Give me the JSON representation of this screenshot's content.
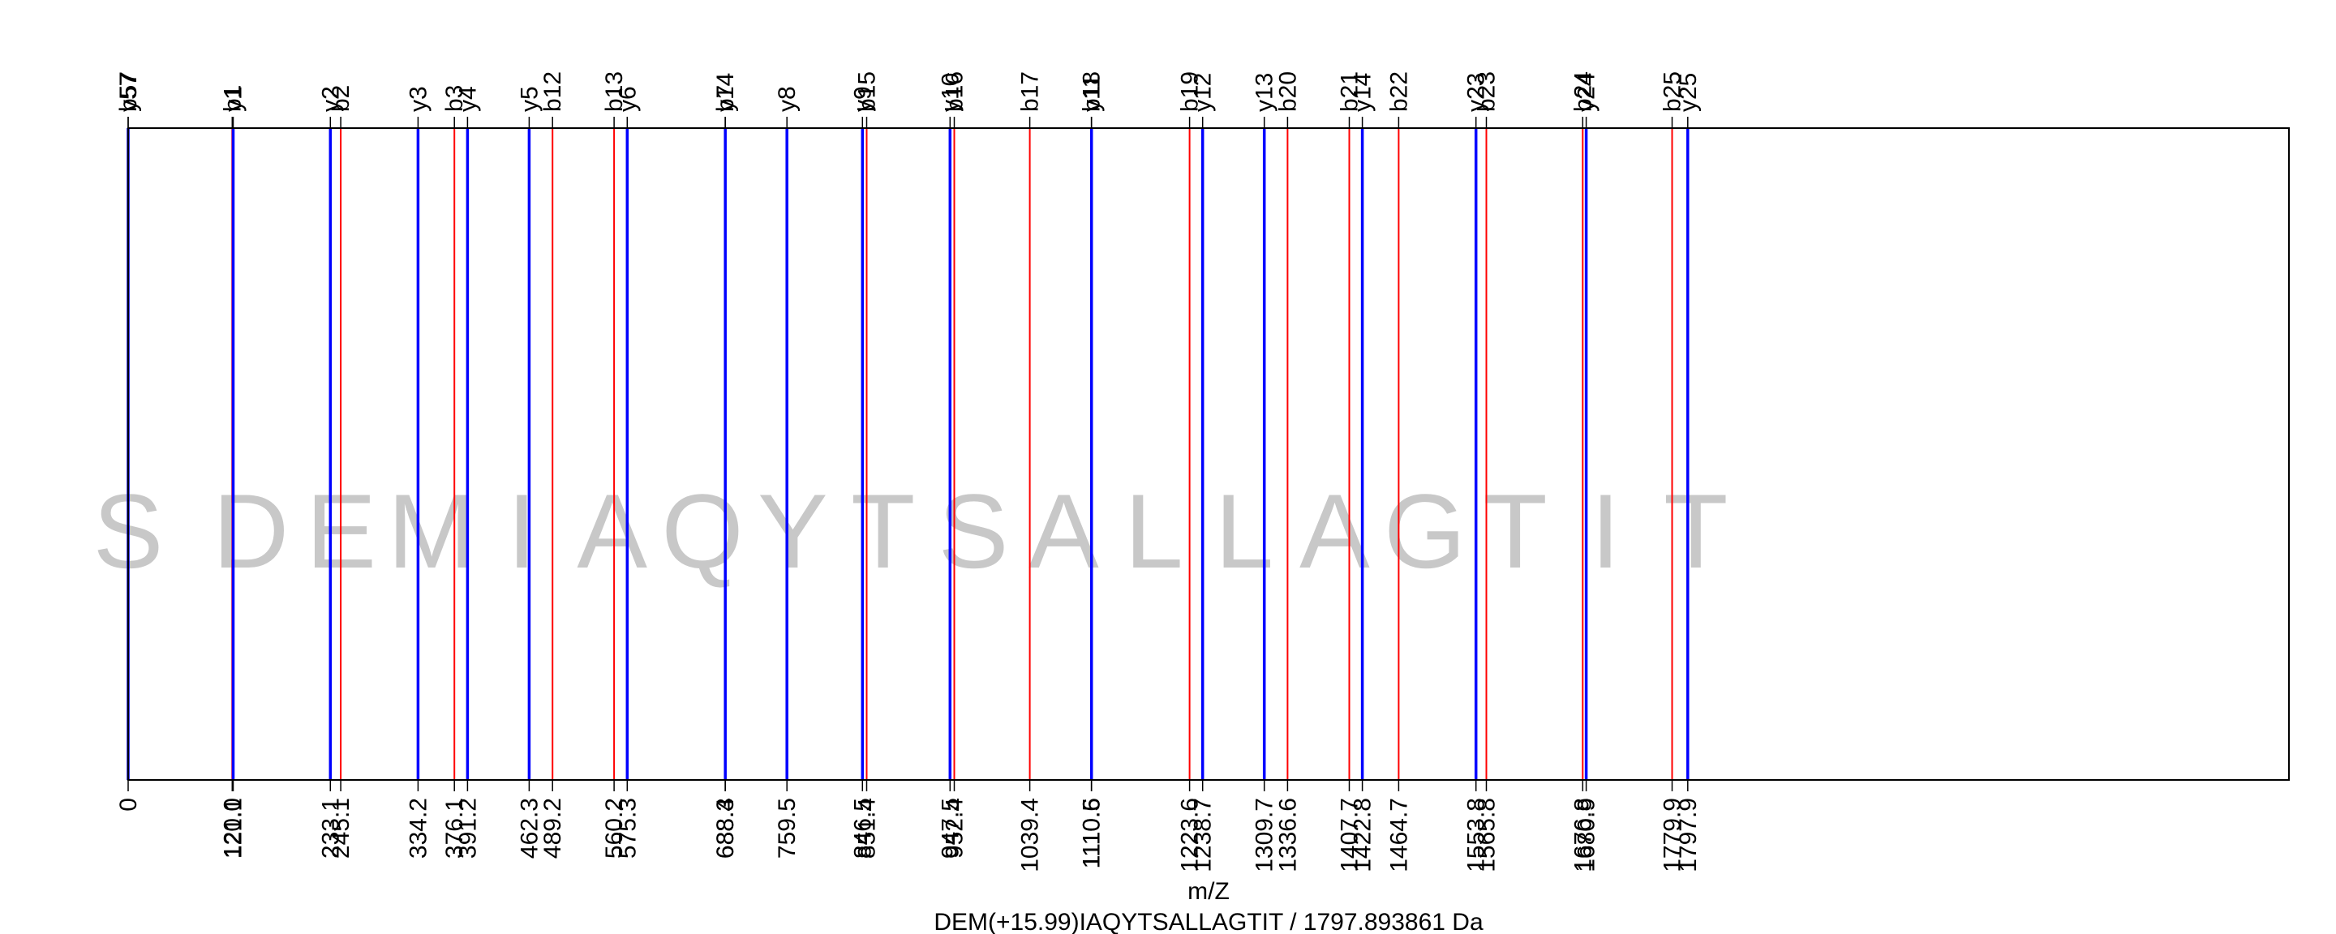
{
  "colors": {
    "b_ion": "#ff0000",
    "y_ion": "#0000ff",
    "residue": "#c8c8c8",
    "frame": "#000000"
  },
  "chart_data": {
    "type": "line",
    "xlabel": "m/Z",
    "title": "DEM(+15.99)IAQYTSALLAGTIT / 1797.893861 Da",
    "xlim": [
      0,
      2491
    ],
    "grid": false,
    "residues": [
      "S",
      "D",
      "E",
      "M",
      "I",
      "A",
      "Q",
      "Y",
      "T",
      "S",
      "A",
      "L",
      "L",
      "A",
      "G",
      "T",
      "I",
      "T"
    ],
    "tick_labels": [
      {
        "x": 0,
        "label": "0"
      },
      {
        "x": 120.0,
        "label": "120.0"
      },
      {
        "x": 121.1,
        "label": "121.1"
      },
      {
        "x": 233.1,
        "label": "233.1"
      },
      {
        "x": 245.1,
        "label": "245.1"
      },
      {
        "x": 334.2,
        "label": "334.2"
      },
      {
        "x": 376.1,
        "label": "376.1"
      },
      {
        "x": 391.2,
        "label": "391.2"
      },
      {
        "x": 462.3,
        "label": "462.3"
      },
      {
        "x": 489.2,
        "label": "489.2"
      },
      {
        "x": 560.2,
        "label": "560.2"
      },
      {
        "x": 575.3,
        "label": "575.3"
      },
      {
        "x": 688.3,
        "label": "688.3"
      },
      {
        "x": 688.4,
        "label": "688.4"
      },
      {
        "x": 759.5,
        "label": "759.5"
      },
      {
        "x": 846.5,
        "label": "846.5"
      },
      {
        "x": 851.4,
        "label": "851.4"
      },
      {
        "x": 947.5,
        "label": "947.5"
      },
      {
        "x": 952.4,
        "label": "952.4"
      },
      {
        "x": 1039.4,
        "label": "1039.4"
      },
      {
        "x": 1110.5,
        "label": "1110.5"
      },
      {
        "x": 1110.6,
        "label": "1110.6"
      },
      {
        "x": 1223.6,
        "label": "1223.6"
      },
      {
        "x": 1238.7,
        "label": "1238.7"
      },
      {
        "x": 1309.7,
        "label": "1309.7"
      },
      {
        "x": 1336.6,
        "label": "1336.6"
      },
      {
        "x": 1407.7,
        "label": "1407.7"
      },
      {
        "x": 1422.8,
        "label": "1422.8"
      },
      {
        "x": 1464.7,
        "label": "1464.7"
      },
      {
        "x": 1553.8,
        "label": "1553.8"
      },
      {
        "x": 1565.8,
        "label": "1565.8"
      },
      {
        "x": 1676.8,
        "label": "1676.8"
      },
      {
        "x": 1680.9,
        "label": "1680.9"
      },
      {
        "x": 1779.9,
        "label": "1779.9"
      },
      {
        "x": 1797.9,
        "label": "1797.9"
      }
    ],
    "series": [
      {
        "name": "b",
        "lines": [
          {
            "x": 0,
            "label": "b57"
          },
          {
            "x": 120.0,
            "label": "b1"
          },
          {
            "x": 245.1,
            "label": "b2"
          },
          {
            "x": 376.1,
            "label": "b3"
          },
          {
            "x": 489.2,
            "label": "b12"
          },
          {
            "x": 560.2,
            "label": "b13"
          },
          {
            "x": 688.3,
            "label": "b7"
          },
          {
            "x": 851.4,
            "label": "b15"
          },
          {
            "x": 952.4,
            "label": "b16"
          },
          {
            "x": 1039.4,
            "label": "b17"
          },
          {
            "x": 1110.5,
            "label": "b18"
          },
          {
            "x": 1223.6,
            "label": "b19"
          },
          {
            "x": 1336.6,
            "label": "b20"
          },
          {
            "x": 1407.7,
            "label": "b21"
          },
          {
            "x": 1464.7,
            "label": "b22"
          },
          {
            "x": 1565.8,
            "label": "b23"
          },
          {
            "x": 1676.8,
            "label": "b24"
          },
          {
            "x": 1779.9,
            "label": "b25"
          }
        ]
      },
      {
        "name": "y",
        "lines": [
          {
            "x": 0,
            "label": "y57"
          },
          {
            "x": 121.1,
            "label": "y1"
          },
          {
            "x": 233.1,
            "label": "y2"
          },
          {
            "x": 334.2,
            "label": "y3"
          },
          {
            "x": 391.2,
            "label": "y4"
          },
          {
            "x": 462.3,
            "label": "y5"
          },
          {
            "x": 575.3,
            "label": "y6"
          },
          {
            "x": 688.4,
            "label": "y14"
          },
          {
            "x": 759.5,
            "label": "y8"
          },
          {
            "x": 846.5,
            "label": "y9"
          },
          {
            "x": 947.5,
            "label": "y10"
          },
          {
            "x": 1110.6,
            "label": "y11"
          },
          {
            "x": 1238.7,
            "label": "y12"
          },
          {
            "x": 1309.7,
            "label": "y13"
          },
          {
            "x": 1422.8,
            "label": "y14"
          },
          {
            "x": 1553.8,
            "label": "y23"
          },
          {
            "x": 1680.9,
            "label": "y24"
          },
          {
            "x": 1797.9,
            "label": "y25"
          }
        ]
      }
    ]
  }
}
